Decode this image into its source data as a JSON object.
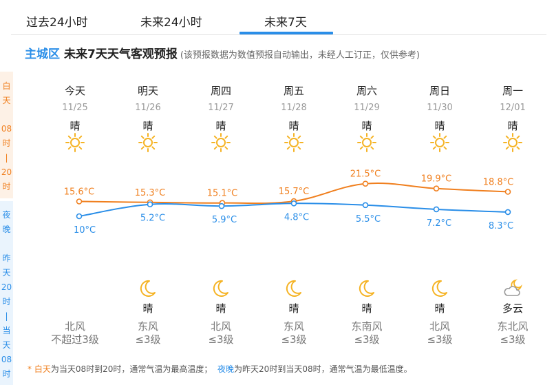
{
  "tabs": [
    {
      "label": "过去24小时",
      "active": false
    },
    {
      "label": "未来24小时",
      "active": false
    },
    {
      "label": "未来7天",
      "active": true
    }
  ],
  "header": {
    "city": "主城区",
    "title": "未来7天天气客观预报",
    "note": "(该预报数据为数值预报自动输出，未经人工订正，仅供参考)"
  },
  "side": {
    "day_chars": [
      "白",
      "天",
      "08",
      "时",
      "|",
      "20",
      "时"
    ],
    "night_chars": [
      "夜",
      "晚",
      "昨",
      "天",
      "20",
      "时",
      "|",
      "当",
      "天",
      "08",
      "时"
    ]
  },
  "colors": {
    "day": "#f07f1e",
    "night": "#2a8ee8",
    "sun": "#f5b324",
    "moon": "#f5b324"
  },
  "days": [
    {
      "name": "今天",
      "date": "11/25",
      "day_weather": "晴",
      "day_icon": "sun-icon",
      "high": 15.6,
      "high_label": "15.6°C",
      "low": 10,
      "low_label": "10°C",
      "night_weather": "",
      "night_icon": "",
      "wind_dir": "北风",
      "wind_level": "不超过3级"
    },
    {
      "name": "明天",
      "date": "11/26",
      "day_weather": "晴",
      "day_icon": "sun-icon",
      "high": 15.3,
      "high_label": "15.3°C",
      "low": 5.2,
      "low_label": "5.2°C",
      "night_weather": "晴",
      "night_icon": "moon-icon",
      "wind_dir": "东风",
      "wind_level": "≤3级"
    },
    {
      "name": "周四",
      "date": "11/27",
      "day_weather": "晴",
      "day_icon": "sun-icon",
      "high": 15.1,
      "high_label": "15.1°C",
      "low": 5.9,
      "low_label": "5.9°C",
      "night_weather": "晴",
      "night_icon": "moon-icon",
      "wind_dir": "北风",
      "wind_level": "≤3级"
    },
    {
      "name": "周五",
      "date": "11/28",
      "day_weather": "晴",
      "day_icon": "sun-icon",
      "high": 15.7,
      "high_label": "15.7°C",
      "low": 4.8,
      "low_label": "4.8°C",
      "night_weather": "晴",
      "night_icon": "moon-icon",
      "wind_dir": "东风",
      "wind_level": "≤3级"
    },
    {
      "name": "周六",
      "date": "11/29",
      "day_weather": "晴",
      "day_icon": "sun-icon",
      "high": 21.5,
      "high_label": "21.5°C",
      "low": 5.5,
      "low_label": "5.5°C",
      "night_weather": "晴",
      "night_icon": "moon-icon",
      "wind_dir": "东南风",
      "wind_level": "≤3级"
    },
    {
      "name": "周日",
      "date": "11/30",
      "day_weather": "晴",
      "day_icon": "sun-icon",
      "high": 19.9,
      "high_label": "19.9°C",
      "low": 7.2,
      "low_label": "7.2°C",
      "night_weather": "晴",
      "night_icon": "moon-icon",
      "wind_dir": "北风",
      "wind_level": "≤3级"
    },
    {
      "name": "周一",
      "date": "12/01",
      "day_weather": "晴",
      "day_icon": "sun-icon",
      "high": 18.8,
      "high_label": "18.8°C",
      "low": 8.3,
      "low_label": "8.3°C",
      "night_weather": "多云",
      "night_icon": "partly-cloudy-night-icon",
      "wind_dir": "东北风",
      "wind_level": "≤3级"
    }
  ],
  "footer": {
    "star": "* ",
    "day_word": "白天",
    "day_text": "为当天08时到20时，通常气温为最高温度；",
    "night_word": "夜晚",
    "night_text": "为昨天20时到当天08时，通常气温为最低温度。"
  }
}
